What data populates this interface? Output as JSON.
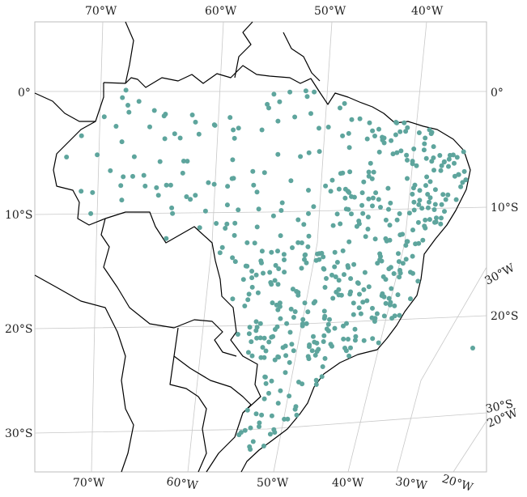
{
  "map": {
    "region": "Brazil",
    "projection": "oblique",
    "colors": {
      "station": "#5ea59d",
      "coast": "#000000",
      "grid": "#c8c8c8",
      "background": "#ffffff"
    },
    "labels": {
      "top": [
        "70°W",
        "60°W",
        "50°W",
        "40°W"
      ],
      "bottom": [
        "70°W",
        "60°W",
        "50°W",
        "40°W",
        "30°W",
        "20°W"
      ],
      "left": [
        "0°",
        "10°S",
        "20°S",
        "30°S"
      ],
      "right": [
        "0°",
        "10°S",
        "20°S",
        "30°W",
        "30°S",
        "20°W"
      ]
    },
    "stations_marker": "filled circle",
    "station_count_visible": 520
  }
}
